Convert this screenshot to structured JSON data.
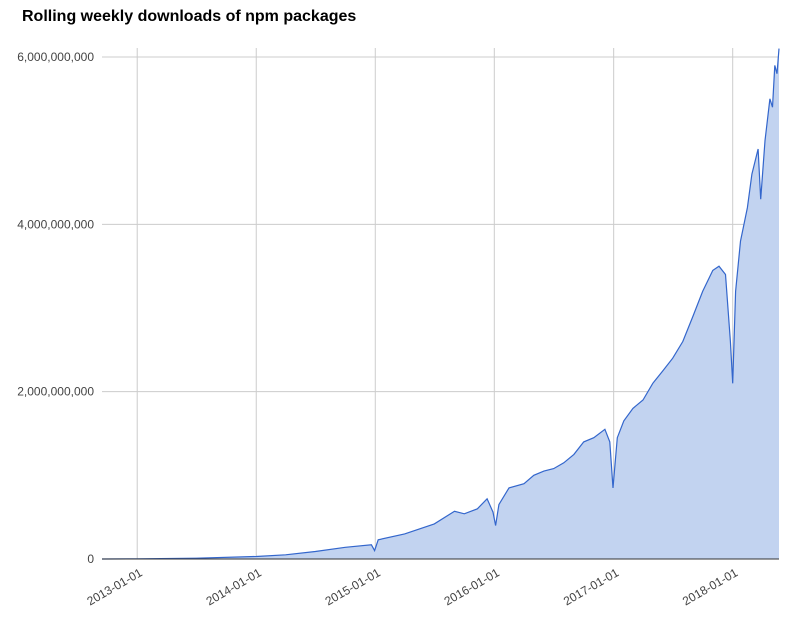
{
  "chart_data": {
    "type": "area",
    "title": "Rolling weekly downloads of npm packages",
    "xlabel": "",
    "ylabel": "",
    "x_range": [
      "2012-09-15",
      "2018-05-23"
    ],
    "ylim": [
      0,
      6000000000
    ],
    "y_ticks": [
      {
        "value": 0,
        "label": "0"
      },
      {
        "value": 2000000000,
        "label": "2,000,000,000"
      },
      {
        "value": 4000000000,
        "label": "4,000,000,000"
      },
      {
        "value": 6000000000,
        "label": "6,000,000,000"
      }
    ],
    "x_ticks": [
      "2013-01-01",
      "2014-01-01",
      "2015-01-01",
      "2016-01-01",
      "2017-01-01",
      "2018-01-01"
    ],
    "grid": true,
    "colors": {
      "line": "#3366cc",
      "fill": "#c2d3f0",
      "grid": "#cccccc",
      "axis": "#333333"
    },
    "points": [
      [
        "2012-09-15",
        0
      ],
      [
        "2013-01-01",
        2000000
      ],
      [
        "2013-07-01",
        10000000
      ],
      [
        "2014-01-01",
        30000000
      ],
      [
        "2014-04-01",
        50000000
      ],
      [
        "2014-07-01",
        90000000
      ],
      [
        "2014-10-01",
        140000000
      ],
      [
        "2014-12-20",
        170000000
      ],
      [
        "2014-12-30",
        100000000
      ],
      [
        "2015-01-10",
        230000000
      ],
      [
        "2015-04-01",
        300000000
      ],
      [
        "2015-07-01",
        420000000
      ],
      [
        "2015-09-01",
        570000000
      ],
      [
        "2015-10-01",
        540000000
      ],
      [
        "2015-11-10",
        600000000
      ],
      [
        "2015-12-10",
        720000000
      ],
      [
        "2015-12-28",
        560000000
      ],
      [
        "2016-01-05",
        400000000
      ],
      [
        "2016-01-15",
        650000000
      ],
      [
        "2016-02-15",
        850000000
      ],
      [
        "2016-04-01",
        900000000
      ],
      [
        "2016-05-01",
        1000000000
      ],
      [
        "2016-06-01",
        1050000000
      ],
      [
        "2016-07-01",
        1080000000
      ],
      [
        "2016-08-01",
        1150000000
      ],
      [
        "2016-09-01",
        1250000000
      ],
      [
        "2016-10-01",
        1400000000
      ],
      [
        "2016-11-01",
        1450000000
      ],
      [
        "2016-12-05",
        1550000000
      ],
      [
        "2016-12-20",
        1400000000
      ],
      [
        "2016-12-30",
        850000000
      ],
      [
        "2017-01-12",
        1450000000
      ],
      [
        "2017-02-01",
        1650000000
      ],
      [
        "2017-03-01",
        1800000000
      ],
      [
        "2017-04-01",
        1900000000
      ],
      [
        "2017-05-01",
        2100000000
      ],
      [
        "2017-06-01",
        2250000000
      ],
      [
        "2017-07-01",
        2400000000
      ],
      [
        "2017-08-01",
        2600000000
      ],
      [
        "2017-09-01",
        2900000000
      ],
      [
        "2017-10-01",
        3200000000
      ],
      [
        "2017-11-01",
        3450000000
      ],
      [
        "2017-11-20",
        3500000000
      ],
      [
        "2017-12-10",
        3400000000
      ],
      [
        "2017-12-25",
        2600000000
      ],
      [
        "2018-01-01",
        2100000000
      ],
      [
        "2018-01-10",
        3200000000
      ],
      [
        "2018-01-25",
        3800000000
      ],
      [
        "2018-02-15",
        4200000000
      ],
      [
        "2018-03-01",
        4600000000
      ],
      [
        "2018-03-20",
        4900000000
      ],
      [
        "2018-03-28",
        4300000000
      ],
      [
        "2018-04-10",
        5000000000
      ],
      [
        "2018-04-25",
        5500000000
      ],
      [
        "2018-05-03",
        5400000000
      ],
      [
        "2018-05-10",
        5900000000
      ],
      [
        "2018-05-17",
        5800000000
      ],
      [
        "2018-05-23",
        6100000000
      ]
    ]
  }
}
